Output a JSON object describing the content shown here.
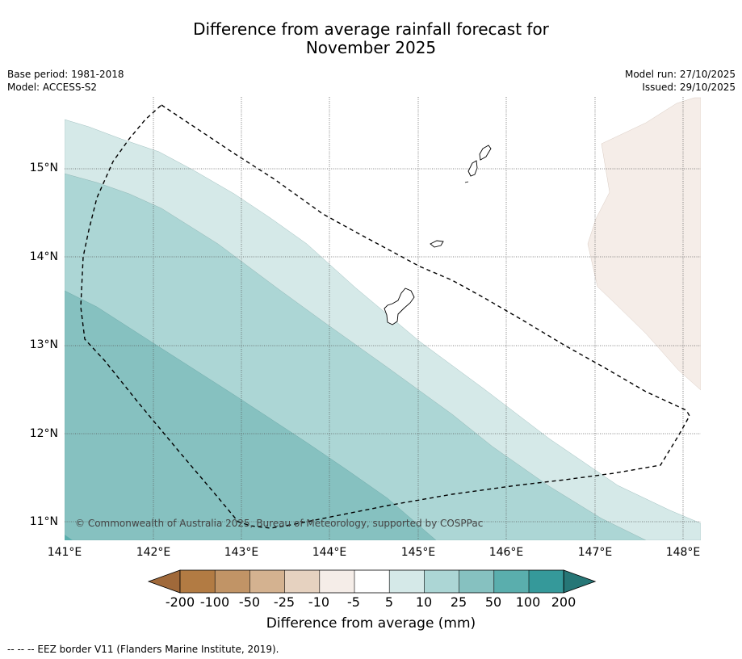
{
  "title": {
    "line1": "Difference from average rainfall forecast for",
    "line2": "November 2025"
  },
  "info": {
    "base_period": "Base period: 1981-2018",
    "model": "Model: ACCESS-S2",
    "model_run": "Model run: 27/10/2025",
    "issued": "Issued: 29/10/2025"
  },
  "map": {
    "lat_labels": [
      "15°N",
      "14°N",
      "13°N",
      "12°N",
      "11°N"
    ],
    "lon_labels": [
      "141°E",
      "142°E",
      "143°E",
      "144°E",
      "145°E",
      "146°E",
      "147°E",
      "148°E"
    ],
    "copyright": "© Commonwealth of Australia 2025, Bureau of Meteorology, supported by COSPPac",
    "colors": {
      "white": "#ffffff",
      "light": "#d5e9e8",
      "mid": "#acd6d5",
      "dark": "#86c1c0",
      "darker": "#5aaead",
      "dry": "#f5ede8"
    }
  },
  "colorbar": {
    "ticks": [
      "-200",
      "-100",
      "-50",
      "-25",
      "-10",
      "-5",
      "5",
      "10",
      "25",
      "50",
      "100",
      "200"
    ],
    "colors": [
      "#a0693a",
      "#b27b43",
      "#c19466",
      "#d4b290",
      "#e6d2c0",
      "#f5ede8",
      "#ffffff",
      "#d5e9e8",
      "#acd6d5",
      "#86c1c0",
      "#5aaead",
      "#35999a",
      "#267676"
    ],
    "label": "Difference from average (mm)"
  },
  "footer": "--  --  -- EEZ border V11 (Flanders Marine Institute, 2019)."
}
